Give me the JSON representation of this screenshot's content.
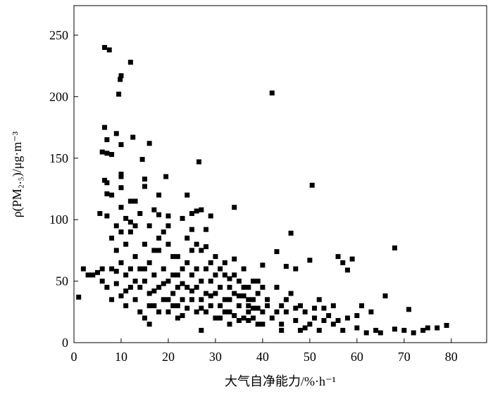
{
  "chart_data": {
    "type": "scatter",
    "x_label": "大气自净能力/%·h⁻¹",
    "y_label": "ρ(PM₂.₅)/μg·m⁻³",
    "color": "#000000",
    "xlim": [
      0,
      87.5
    ],
    "xticks": [
      0,
      10,
      20,
      30,
      40,
      50,
      60,
      70,
      80
    ],
    "ylim": [
      0,
      274
    ],
    "yticks": [
      0,
      50,
      100,
      150,
      200,
      250
    ],
    "x": [
      6.5,
      7.5,
      12,
      10,
      9.8,
      9.5,
      42,
      6.5,
      7,
      12.5,
      9,
      16,
      10,
      6,
      7,
      8,
      14.5,
      26.5,
      10,
      10,
      6.5,
      7,
      15,
      19.5,
      10,
      7,
      8,
      15,
      18,
      24,
      50.5,
      34,
      27,
      5.5,
      7,
      11,
      12,
      18,
      20,
      23,
      25,
      26,
      29,
      46,
      43,
      68,
      56,
      59,
      57,
      58,
      40,
      45,
      47,
      50,
      1,
      2,
      3,
      4,
      5,
      55,
      57,
      60,
      62,
      64,
      65,
      66,
      68,
      70,
      71,
      72,
      74,
      75,
      77,
      79,
      61,
      63,
      60,
      58,
      56,
      54,
      53,
      52,
      51,
      50,
      49,
      48,
      47,
      46,
      45,
      44,
      44,
      43,
      42,
      41,
      40,
      39,
      38,
      37,
      8,
      9,
      10,
      11,
      12,
      13,
      14,
      15,
      16,
      17,
      18,
      19,
      20,
      21,
      22,
      23,
      24,
      25,
      26,
      27,
      28,
      29,
      30,
      31,
      32,
      33,
      34,
      35,
      36,
      37,
      38,
      39,
      8,
      9,
      10,
      11,
      12,
      13,
      14,
      15,
      16,
      17,
      18,
      19,
      20,
      21,
      22,
      23,
      24,
      25,
      26,
      27,
      28,
      29,
      30,
      31,
      32,
      33,
      34,
      35,
      36,
      37,
      38,
      39,
      40,
      7,
      8,
      9,
      10,
      11,
      12,
      13,
      14,
      15,
      16,
      17,
      18,
      19,
      20,
      21,
      22,
      23,
      24,
      25,
      26,
      27,
      28,
      29,
      30,
      31,
      32,
      33,
      34,
      35,
      36,
      37,
      38,
      6,
      9,
      11,
      13,
      15,
      17,
      19,
      21,
      23,
      25,
      27,
      29,
      31,
      33,
      35,
      37,
      39,
      41,
      43,
      45,
      47,
      49,
      51,
      53,
      6,
      10,
      12,
      14,
      16,
      18,
      20,
      22,
      24,
      26,
      28,
      30,
      32,
      34,
      36,
      16,
      22,
      27,
      33,
      40,
      44,
      48,
      52,
      55,
      20,
      25,
      28,
      13,
      17
    ],
    "values": [
      240,
      238,
      228,
      217,
      214,
      202,
      203,
      175,
      165,
      167,
      170,
      162,
      161,
      155,
      154,
      153,
      149,
      147,
      137,
      135,
      132,
      130,
      133,
      135,
      126,
      121,
      120,
      127,
      120,
      120,
      128,
      110,
      108,
      105,
      103,
      101,
      98,
      104,
      103,
      101,
      105,
      107,
      103,
      89,
      74,
      77,
      70,
      68,
      65,
      59,
      63,
      62,
      60,
      67,
      37,
      60,
      55,
      55,
      57,
      30,
      10,
      12,
      8,
      10,
      8,
      38,
      11,
      10,
      27,
      8,
      10,
      12,
      12,
      14,
      30,
      25,
      22,
      20,
      18,
      22,
      28,
      35,
      20,
      15,
      25,
      30,
      18,
      40,
      25,
      30,
      15,
      45,
      20,
      35,
      25,
      40,
      20,
      30,
      85,
      75,
      65,
      55,
      45,
      70,
      60,
      50,
      40,
      55,
      45,
      35,
      50,
      40,
      30,
      60,
      45,
      35,
      25,
      50,
      40,
      30,
      20,
      45,
      35,
      25,
      40,
      30,
      20,
      45,
      35,
      28,
      60,
      48,
      38,
      80,
      90,
      35,
      25,
      80,
      65,
      30,
      75,
      60,
      25,
      70,
      55,
      22,
      65,
      55,
      45,
      75,
      60,
      50,
      40,
      30,
      55,
      45,
      22,
      50,
      38,
      18,
      50,
      15,
      45,
      45,
      35,
      95,
      90,
      30,
      60,
      95,
      45,
      20,
      30,
      75,
      25,
      90,
      35,
      55,
      45,
      35,
      28,
      75,
      60,
      35,
      25,
      65,
      55,
      60,
      25,
      35,
      55,
      18,
      45,
      25,
      28,
      50,
      58,
      42,
      50,
      60,
      42,
      48,
      30,
      48,
      42,
      28,
      38,
      20,
      52,
      38,
      35,
      50,
      30,
      25,
      35,
      28,
      12,
      28,
      18,
      60,
      110,
      115,
      105,
      95,
      85,
      80,
      70,
      85,
      80,
      78,
      70,
      65,
      68,
      60,
      15,
      20,
      10,
      15,
      15,
      10,
      10,
      10,
      15,
      95,
      92,
      92,
      115,
      108
    ]
  }
}
